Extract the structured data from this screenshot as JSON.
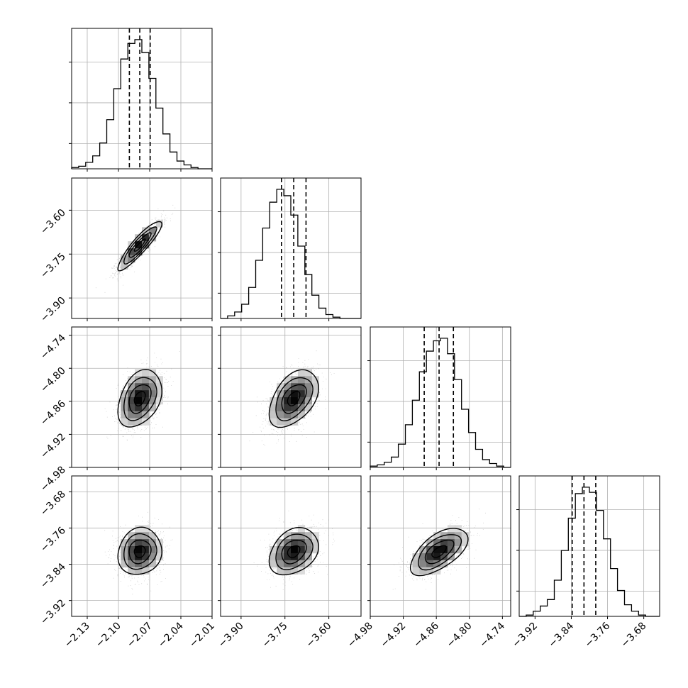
{
  "chart_data": {
    "type": "corner",
    "title": "",
    "parameters": [
      {
        "ticks": [
          -2.13,
          -2.1,
          -2.07,
          -2.04,
          -2.01
        ],
        "tick_labels": [
          "−2.13",
          "−2.10",
          "−2.07",
          "−2.04",
          "−2.01"
        ],
        "range": [
          -2.145,
          -2.01
        ],
        "median": -2.0795,
        "quantile_16": -2.0895,
        "quantile_84": -2.0695,
        "std": 0.0105
      },
      {
        "ticks": [
          -3.9,
          -3.75,
          -3.6
        ],
        "tick_labels": [
          "−3.90",
          "−3.75",
          "−3.60"
        ],
        "range": [
          -3.97,
          -3.49
        ],
        "median": -3.72,
        "quantile_16": -3.762,
        "quantile_84": -3.678,
        "std": 0.042
      },
      {
        "ticks": [
          -4.98,
          -4.92,
          -4.86,
          -4.8,
          -4.74
        ],
        "tick_labels": [
          "−4.98",
          "−4.92",
          "−4.86",
          "−4.80",
          "−4.74"
        ],
        "range": [
          -4.98,
          -4.725
        ],
        "median": -4.855,
        "quantile_16": -4.882,
        "quantile_84": -4.829,
        "std": 0.026
      },
      {
        "ticks": [
          -3.92,
          -3.84,
          -3.76,
          -3.68
        ],
        "tick_labels": [
          "−3.92",
          "−3.84",
          "−3.76",
          "−3.68"
        ],
        "range": [
          -3.955,
          -3.645
        ],
        "median": -3.812,
        "quantile_16": -3.838,
        "quantile_84": -3.786,
        "std": 0.026
      }
    ],
    "correlations": {
      "1-0": 0.9,
      "2-0": 0.35,
      "2-1": 0.45,
      "3-0": 0.1,
      "3-1": 0.3,
      "3-2": 0.6
    },
    "histograms": [
      [
        0.01,
        0.02,
        0.05,
        0.1,
        0.2,
        0.38,
        0.62,
        0.85,
        0.97,
        1.0,
        0.9,
        0.7,
        0.47,
        0.27,
        0.13,
        0.06,
        0.03,
        0.01,
        0.0,
        0.0
      ],
      [
        0.0,
        0.02,
        0.05,
        0.11,
        0.24,
        0.45,
        0.7,
        0.9,
        1.0,
        0.95,
        0.8,
        0.56,
        0.34,
        0.18,
        0.08,
        0.03,
        0.01,
        0.0,
        0.0,
        0.0
      ],
      [
        0.01,
        0.02,
        0.04,
        0.08,
        0.18,
        0.33,
        0.52,
        0.74,
        0.9,
        0.98,
        1.0,
        0.88,
        0.68,
        0.45,
        0.27,
        0.14,
        0.06,
        0.03,
        0.01,
        0.0
      ],
      [
        0.0,
        0.01,
        0.04,
        0.08,
        0.13,
        0.28,
        0.51,
        0.76,
        0.95,
        1.0,
        0.96,
        0.82,
        0.6,
        0.37,
        0.2,
        0.09,
        0.04,
        0.01,
        0.0,
        0.0
      ]
    ],
    "contour_levels_sigma": [
      0.5,
      1.0,
      1.5,
      2.0
    ],
    "grid": true,
    "legend": "none"
  }
}
